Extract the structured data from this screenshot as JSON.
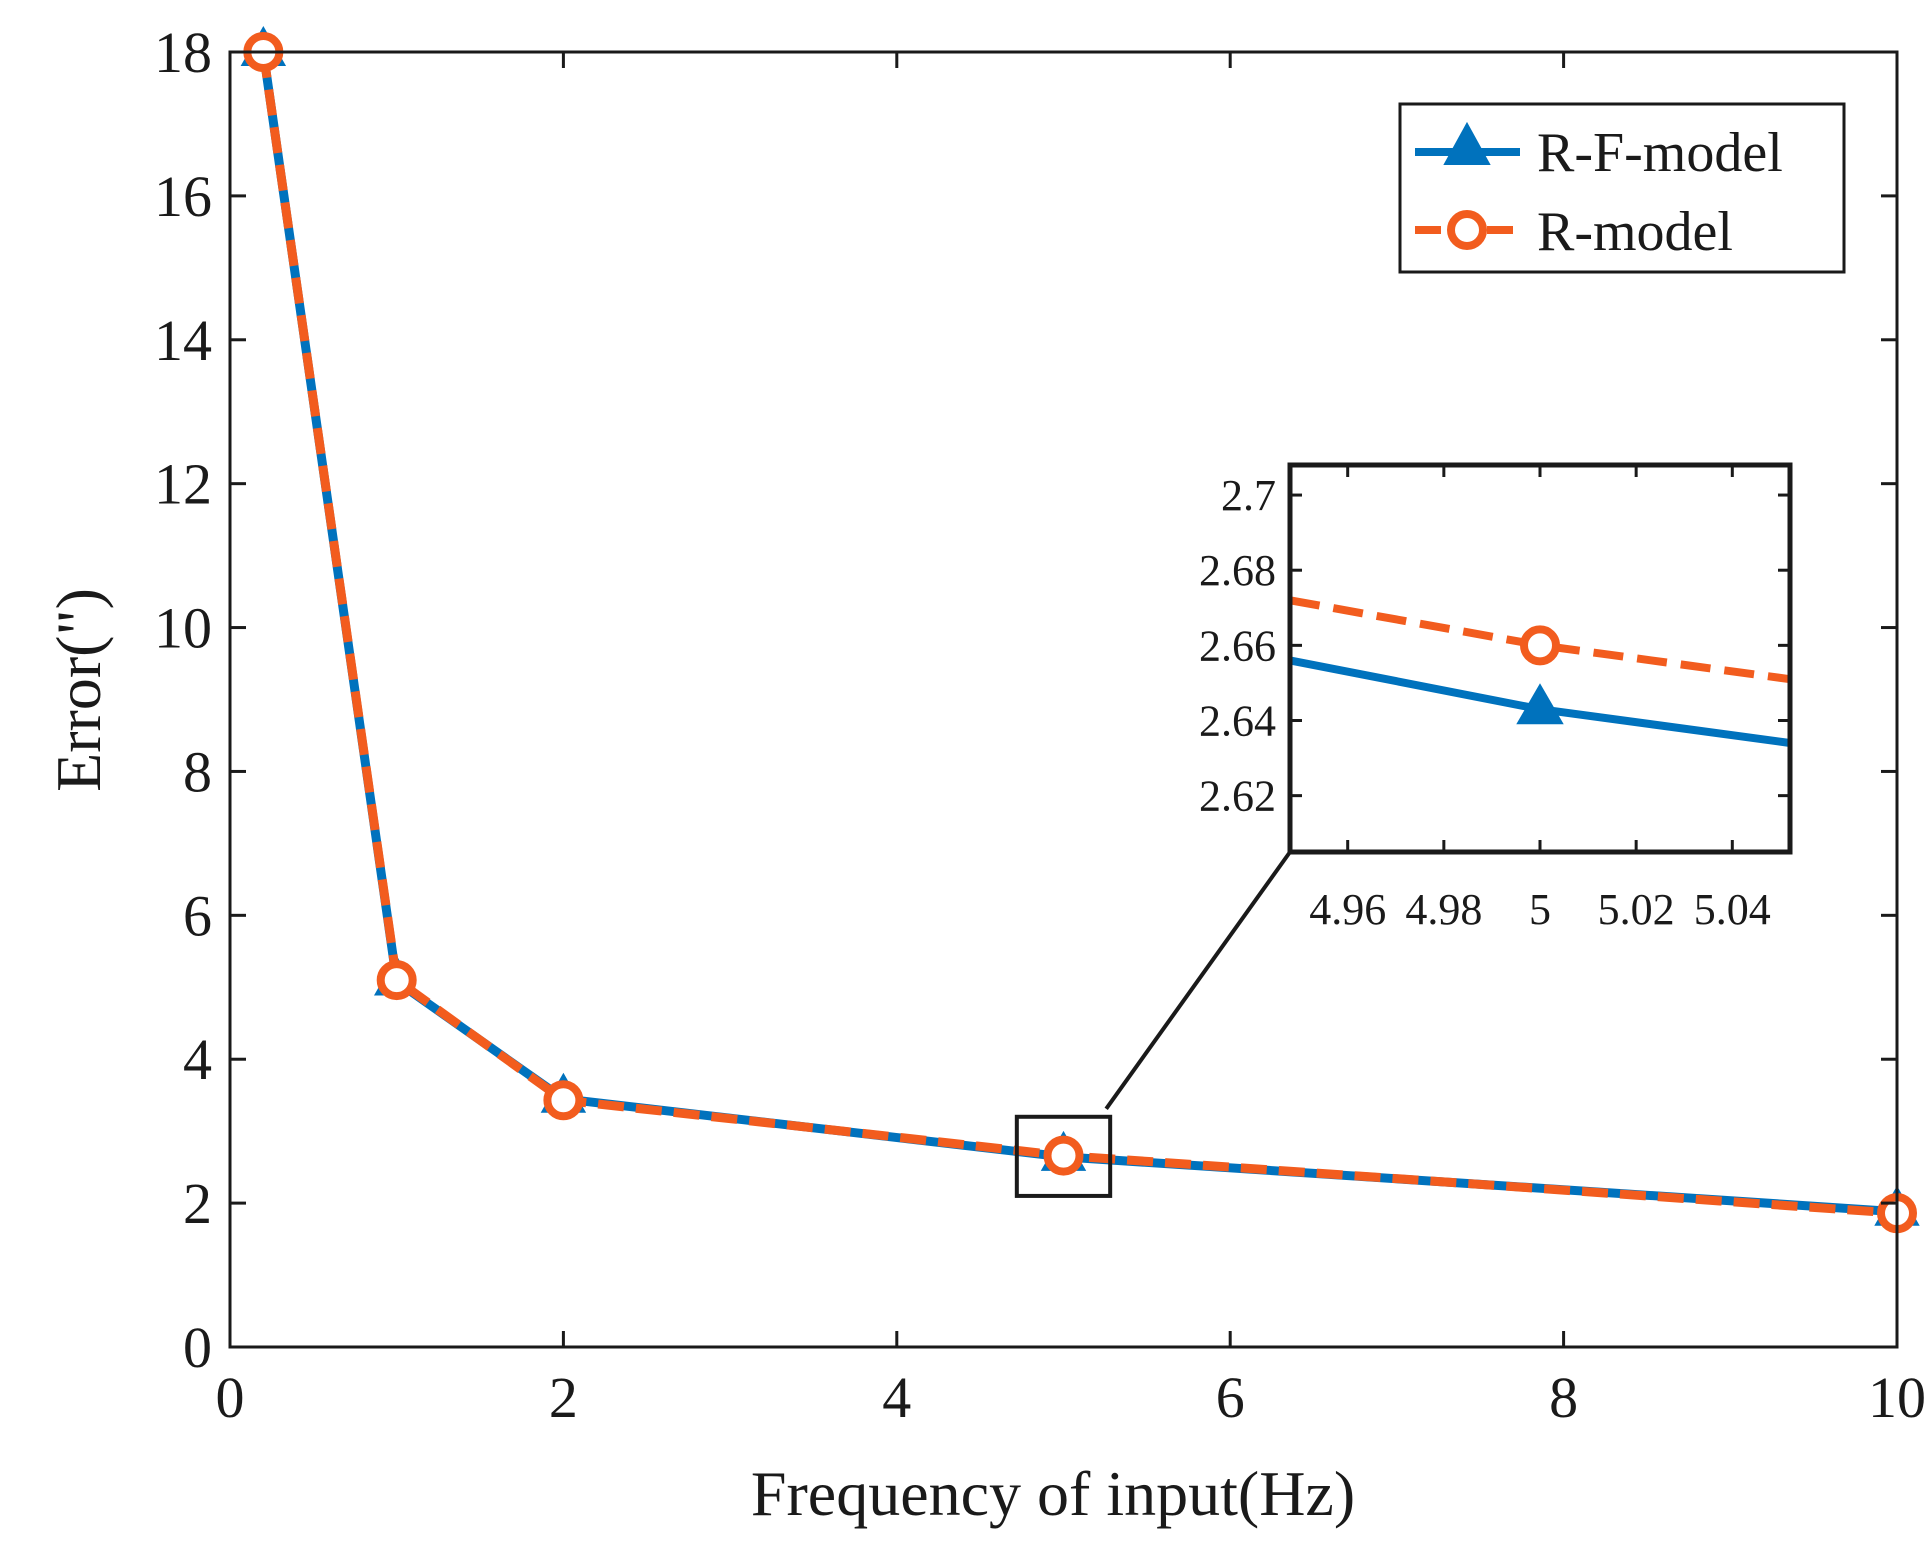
{
  "chart_data": {
    "type": "line",
    "title": "",
    "xlabel": "Frequency of input(Hz)",
    "ylabel": "Error(\")",
    "xlim": [
      0,
      10
    ],
    "ylim": [
      0,
      18
    ],
    "x_ticks": [
      0,
      2,
      4,
      6,
      8,
      10
    ],
    "y_ticks": [
      0,
      2,
      4,
      6,
      8,
      10,
      12,
      14,
      16,
      18
    ],
    "x_tick_labels": [
      "0",
      "2",
      "4",
      "6",
      "8",
      "10"
    ],
    "y_tick_labels": [
      "0",
      "2",
      "4",
      "6",
      "8",
      "10",
      "12",
      "14",
      "16",
      "18"
    ],
    "grid": false,
    "legend_position": "top-right",
    "series": [
      {
        "name": "R-F-model",
        "color": "#0072BD",
        "marker": "triangle",
        "line_style": "solid",
        "x": [
          0.2,
          1,
          2,
          5,
          10
        ],
        "y": [
          18.0,
          5.08,
          3.45,
          2.643,
          1.88
        ]
      },
      {
        "name": "R-model",
        "color": "#F25C1E",
        "marker": "circle",
        "line_style": "dashed",
        "x": [
          0.2,
          1,
          2,
          5,
          10
        ],
        "y": [
          18.0,
          5.1,
          3.43,
          2.66,
          1.86
        ]
      }
    ],
    "zoom_box": {
      "x_range": [
        4.72,
        5.28
      ],
      "y_range": [
        2.1,
        3.2
      ]
    },
    "inset": {
      "xlim": [
        4.948,
        5.052
      ],
      "ylim": [
        2.605,
        2.708
      ],
      "x_ticks": [
        4.96,
        4.98,
        5,
        5.02,
        5.04
      ],
      "x_tick_labels": [
        "4.96",
        "4.98",
        "5",
        "5.02",
        "5.04"
      ],
      "y_ticks": [
        2.62,
        2.64,
        2.66,
        2.68,
        2.7
      ],
      "y_tick_labels": [
        "2.62",
        "2.64",
        "2.66",
        "2.68",
        "2.7"
      ],
      "series": [
        {
          "name": "R-F-model",
          "color": "#0072BD",
          "line_style": "solid",
          "x": [
            4.948,
            5,
            5.052
          ],
          "y": [
            2.656,
            2.643,
            2.634
          ],
          "marker_x": 5,
          "marker_y": 2.643
        },
        {
          "name": "R-model",
          "color": "#F25C1E",
          "line_style": "dashed",
          "x": [
            4.948,
            5,
            5.052
          ],
          "y": [
            2.672,
            2.66,
            2.651
          ],
          "marker_x": 5,
          "marker_y": 2.66
        }
      ]
    }
  }
}
